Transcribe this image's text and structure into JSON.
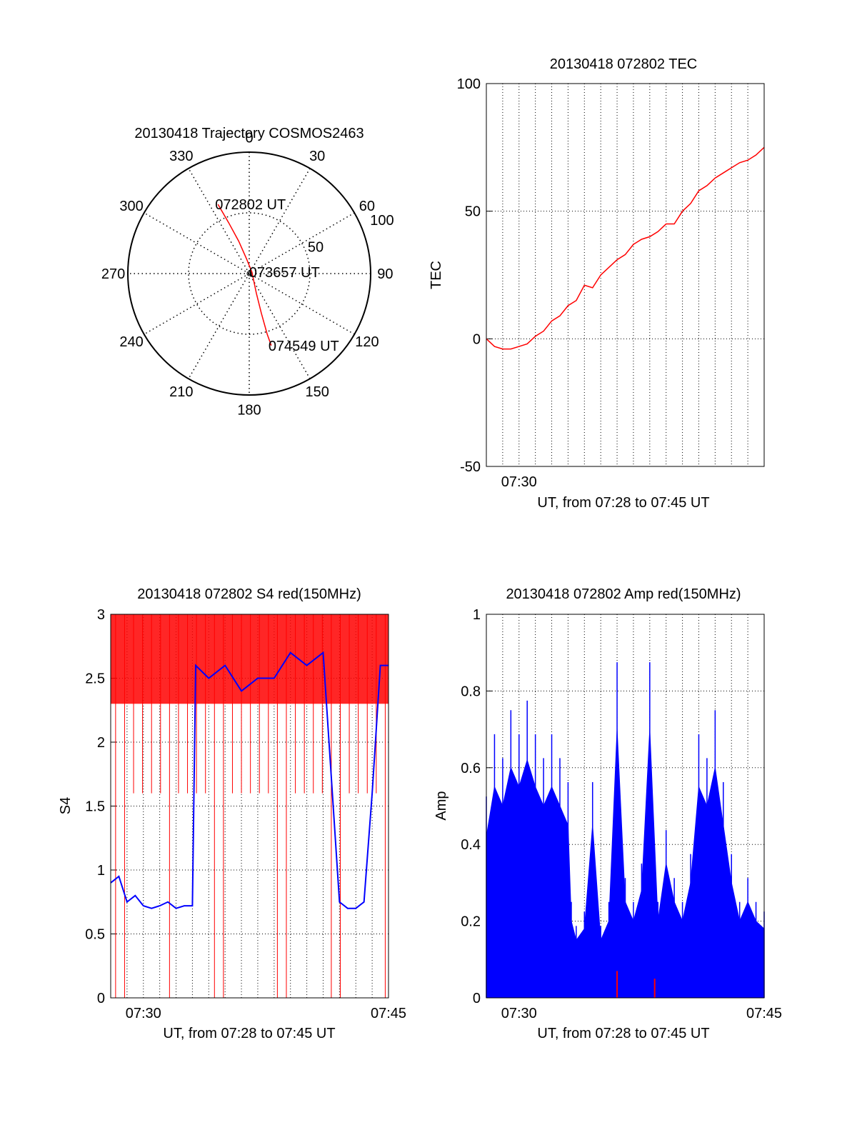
{
  "colors": {
    "red": "#ff0000",
    "blue": "#0000ff",
    "axis": "#000000",
    "grid": "#000000"
  },
  "chart_data": [
    {
      "type": "polar",
      "title": "20130418 Trajectory COSMOS2463",
      "angle_labels": [
        {
          "deg": 0,
          "text": "0"
        },
        {
          "deg": 30,
          "text": "30"
        },
        {
          "deg": 60,
          "text": "60"
        },
        {
          "deg": 90,
          "text": "90"
        },
        {
          "deg": 120,
          "text": "120"
        },
        {
          "deg": 150,
          "text": "150"
        },
        {
          "deg": 180,
          "text": "180"
        },
        {
          "deg": 210,
          "text": "210"
        },
        {
          "deg": 240,
          "text": "240"
        },
        {
          "deg": 270,
          "text": "270"
        },
        {
          "deg": 300,
          "text": "300"
        },
        {
          "deg": 330,
          "text": "330"
        }
      ],
      "radius_labels": [
        {
          "r": 50,
          "text": "50"
        },
        {
          "r": 100,
          "text": "100"
        }
      ],
      "rmax": 100,
      "trajectory": [
        {
          "az": 335.7,
          "r": 62.5
        },
        {
          "az": 338,
          "r": 45
        },
        {
          "az": 342,
          "r": 28
        },
        {
          "az": 350,
          "r": 12
        },
        {
          "az": 62,
          "r": 2.5
        },
        {
          "az": 160,
          "r": 17
        },
        {
          "az": 163,
          "r": 34
        },
        {
          "az": 163.5,
          "r": 52
        },
        {
          "az": 163,
          "r": 62
        }
      ],
      "annotations": [
        {
          "az": 335.7,
          "r": 62.5,
          "text": "072802 UT"
        },
        {
          "az": 62,
          "r": 2.5,
          "text": "073657 UT"
        },
        {
          "az": 163,
          "r": 62,
          "text": "074549 UT"
        }
      ],
      "series_color": "red"
    },
    {
      "type": "line",
      "title": "20130418 072802 TEC",
      "xlabel": "UT, from 07:28 to 07:45 UT",
      "ylabel": "TEC",
      "ylim": [
        -50,
        100
      ],
      "yticks": [
        -50,
        0,
        50,
        100
      ],
      "xlim_minutes": [
        0,
        17
      ],
      "xtick_labels": [
        {
          "x": 2,
          "text": "07:30"
        }
      ],
      "grid": "vertical dotted, horizontal at y ticks",
      "series": [
        {
          "color": "red",
          "x": [
            0,
            0.5,
            1,
            1.5,
            2,
            2.5,
            3,
            3.5,
            4,
            4.5,
            5,
            5.5,
            6,
            6.5,
            7,
            7.5,
            8,
            8.5,
            9,
            9.5,
            10,
            10.5,
            11,
            11.5,
            12,
            12.5,
            13,
            13.5,
            14,
            14.5,
            15,
            15.5,
            16,
            16.5,
            17
          ],
          "y": [
            0,
            -3,
            -4,
            -4,
            -3,
            -2,
            1,
            3,
            7,
            9,
            13,
            15,
            21,
            20,
            25,
            28,
            31,
            33,
            37,
            39,
            40,
            42,
            45,
            45,
            50,
            53,
            58,
            60,
            63,
            65,
            67,
            69,
            70,
            72,
            75
          ]
        }
      ]
    },
    {
      "type": "line",
      "title": "20130418 072802 S4 red(150MHz)",
      "xlabel": "UT, from 07:28 to 07:45 UT",
      "ylabel": "S4",
      "ylim": [
        0,
        3
      ],
      "yticks": [
        0,
        0.5,
        1,
        1.5,
        2,
        2.5,
        3
      ],
      "ytick_labels": [
        "0",
        "0.5",
        "1",
        "1.5",
        "2",
        "2.5",
        "3"
      ],
      "xlim_minutes": [
        0,
        17
      ],
      "xtick_labels": [
        {
          "x": 2,
          "text": "07:30"
        },
        {
          "x": 17,
          "text": "07:45"
        }
      ],
      "grid": "dotted",
      "series": [
        {
          "color": "red",
          "x": [
            0,
            5.2,
            5.2,
            17
          ],
          "y": [
            2.8,
            2.8,
            2.8,
            2.8
          ]
        },
        {
          "color": "blue",
          "x": [
            0,
            0.5,
            1,
            1.5,
            2,
            2.5,
            3,
            3.5,
            4,
            4.5,
            5,
            5.2,
            6,
            7,
            8,
            9,
            10,
            11,
            12,
            13,
            14,
            14.5,
            15,
            15.5,
            16,
            16.5,
            17
          ],
          "y": [
            0.9,
            0.95,
            0.75,
            0.8,
            0.72,
            0.7,
            0.72,
            0.75,
            0.7,
            0.72,
            0.72,
            2.6,
            2.5,
            2.6,
            2.4,
            2.5,
            2.5,
            2.7,
            2.6,
            2.7,
            0.75,
            0.7,
            0.7,
            0.75,
            1.6,
            2.6,
            2.6
          ]
        }
      ]
    },
    {
      "type": "bar",
      "title": "20130418 072802 Amp red(150MHz)",
      "xlabel": "UT, from 07:28 to 07:45 UT",
      "ylabel": "Amp",
      "ylim": [
        0,
        1
      ],
      "yticks": [
        0,
        0.2,
        0.4,
        0.6,
        0.8,
        1
      ],
      "ytick_labels": [
        "0",
        "0.2",
        "0.4",
        "0.6",
        "0.8",
        "1"
      ],
      "xlim_minutes": [
        0,
        17
      ],
      "xtick_labels": [
        {
          "x": 2,
          "text": "07:30"
        },
        {
          "x": 17,
          "text": "07:45"
        }
      ],
      "grid": "dotted",
      "series": [
        {
          "color": "blue",
          "x": [
            0,
            0.5,
            1,
            1.5,
            2,
            2.5,
            3,
            3.5,
            4,
            4.5,
            5,
            5.2,
            5.5,
            6,
            6.5,
            7,
            7.5,
            8,
            8.5,
            9,
            9.5,
            10,
            10.5,
            11,
            11.5,
            12,
            12.5,
            13,
            13.5,
            14,
            14.5,
            15,
            15.5,
            16,
            16.5,
            17
          ],
          "y": [
            0.42,
            0.55,
            0.5,
            0.6,
            0.55,
            0.62,
            0.55,
            0.5,
            0.55,
            0.5,
            0.45,
            0.2,
            0.15,
            0.18,
            0.45,
            0.15,
            0.2,
            0.7,
            0.25,
            0.2,
            0.28,
            0.7,
            0.2,
            0.35,
            0.25,
            0.2,
            0.3,
            0.55,
            0.5,
            0.6,
            0.45,
            0.3,
            0.2,
            0.25,
            0.2,
            0.18
          ]
        },
        {
          "color": "red",
          "x": [
            8,
            10.3
          ],
          "y": [
            0.07,
            0.05
          ]
        }
      ]
    }
  ]
}
